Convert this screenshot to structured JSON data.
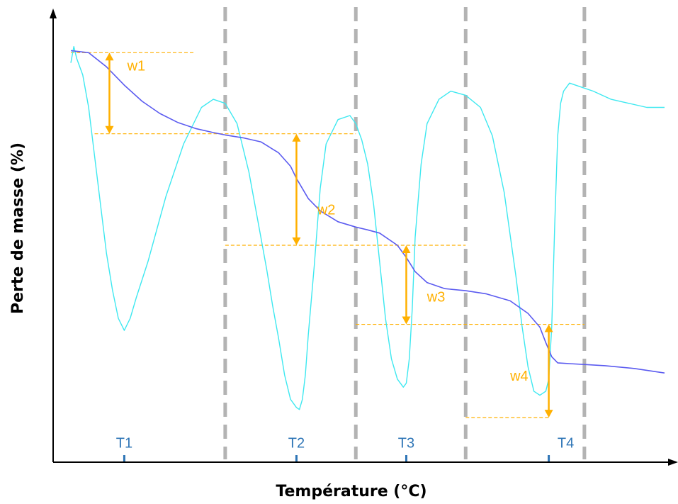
{
  "chart_data": {
    "type": "line",
    "title": "",
    "xlabel": "Température (°C)",
    "ylabel": "Perte de masse (%)",
    "xlim": [
      0,
      100
    ],
    "ylim": [
      0,
      100
    ],
    "grid": false,
    "legend": "none",
    "x_ticks": [
      {
        "label": "T1",
        "x": 9
      },
      {
        "label": "T2",
        "x": 38
      },
      {
        "label": "T3",
        "x": 56.5
      },
      {
        "label": "T4",
        "x": 80.5
      }
    ],
    "separator_lines_x": [
      26,
      48,
      66.5,
      86.5
    ],
    "series": [
      {
        "role": "mass-loss",
        "color": "#5b5bf0",
        "x": [
          0,
          3,
          6,
          9,
          12,
          15,
          18,
          21,
          24,
          26,
          29,
          32,
          35,
          37,
          38,
          40,
          42,
          45,
          48,
          50,
          52,
          55,
          56.5,
          58,
          60,
          63,
          66.5,
          70,
          74,
          77,
          79,
          80,
          81,
          82,
          84,
          86.5,
          90,
          95,
          100
        ],
        "y": [
          98,
          97.5,
          94,
          89.5,
          85.5,
          82.5,
          80.3,
          78.8,
          77.8,
          77.2,
          76.5,
          75.5,
          72.8,
          69.5,
          66.5,
          61.5,
          58.5,
          55.8,
          54.5,
          53.8,
          53,
          50,
          47,
          43.5,
          40.8,
          39.3,
          38.8,
          38,
          36.3,
          33.2,
          29.8,
          26,
          22.5,
          21,
          20.8,
          20.6,
          20.3,
          19.6,
          18.5
        ]
      },
      {
        "role": "derivative-signal",
        "color": "#3ee8f0",
        "x": [
          0,
          0.5,
          1,
          2,
          3,
          4,
          5,
          6,
          7,
          8,
          9,
          10,
          11,
          13,
          16,
          19,
          22,
          24,
          26,
          28,
          30,
          32,
          33,
          34,
          35,
          36,
          37,
          38,
          38.5,
          39,
          39.5,
          40,
          41,
          42,
          43,
          45,
          47,
          48,
          49,
          50,
          51,
          52,
          53,
          54,
          55,
          56,
          56.5,
          57,
          57.5,
          58,
          59,
          60,
          62,
          64,
          66.5,
          69,
          71,
          73,
          75,
          76,
          77,
          78,
          79,
          80,
          80.5,
          81,
          81.5,
          82,
          82.5,
          83,
          84,
          86,
          88,
          91,
          94,
          97,
          100
        ],
        "y": [
          95,
          99,
          96,
          92,
          84,
          72,
          60,
          48,
          39,
          32,
          29,
          32,
          37,
          46,
          62,
          75,
          84,
          86,
          85,
          80,
          68,
          52,
          44,
          35,
          27,
          18,
          12,
          10,
          9.5,
          12,
          18,
          28,
          45,
          64,
          75,
          81,
          82,
          80,
          76,
          70,
          60,
          46,
          32,
          22,
          17,
          15,
          16,
          22,
          34,
          52,
          70,
          80,
          86,
          88,
          87,
          84,
          77,
          63,
          42,
          30,
          20,
          14,
          13,
          14,
          17,
          30,
          55,
          77,
          85,
          88,
          90,
          89,
          88,
          86,
          85,
          84,
          84
        ]
      }
    ],
    "steps": [
      {
        "label": "w1",
        "color": "#ffb000",
        "x": 6.5,
        "y_top": 97.5,
        "y_bottom": 77.5,
        "ref_lines": [
          {
            "y": 97.5,
            "from": 0,
            "to": 21
          },
          {
            "y": 77.5,
            "from": 4,
            "to": 48
          }
        ],
        "label_x": 9.5,
        "label_y": 94
      },
      {
        "label": "w2",
        "color": "#ffb000",
        "x": 38,
        "y_top": 77.5,
        "y_bottom": 50,
        "ref_lines": [
          {
            "y": 50,
            "from": 26,
            "to": 66.5
          }
        ],
        "label_x": 41.5,
        "label_y": 58.5
      },
      {
        "label": "w3",
        "color": "#ffb000",
        "x": 56.5,
        "y_top": 50,
        "y_bottom": 30.5,
        "ref_lines": [
          {
            "y": 30.5,
            "from": 48,
            "to": 86.5
          }
        ],
        "label_x": 60,
        "label_y": 37
      },
      {
        "label": "w4",
        "color": "#ffb000",
        "x": 80.5,
        "y_top": 30.5,
        "y_bottom": 7.5,
        "ref_lines": [
          {
            "y": 7.5,
            "from": 66.5,
            "to": 80.5
          }
        ],
        "label_x": 74,
        "label_y": 17.5
      }
    ],
    "colors": {
      "axis": "#000000",
      "separator": "#b3b3b3",
      "tick": "#2e75b6",
      "step": "#ffb000"
    }
  }
}
